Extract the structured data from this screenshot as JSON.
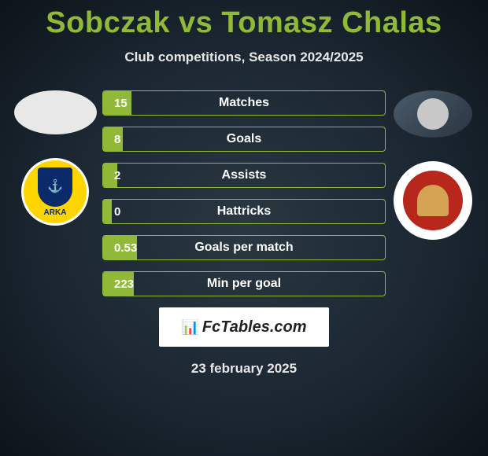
{
  "title": "Sobczak vs Tomasz Chalas",
  "subtitle": "Club competitions, Season 2024/2025",
  "colors": {
    "accent": "#8fb936",
    "bg_center": "#2a3842",
    "bg_edge": "#0d1419",
    "text_light": "#e8e8e8",
    "white": "#ffffff",
    "club_left_bg": "#ffd500",
    "club_left_shield": "#0a2a6a",
    "club_right_bg": "#b8271c",
    "club_right_emblem": "#d4a354"
  },
  "stats": [
    {
      "value": "15",
      "label": "Matches",
      "fill_pct": 10
    },
    {
      "value": "8",
      "label": "Goals",
      "fill_pct": 7
    },
    {
      "value": "2",
      "label": "Assists",
      "fill_pct": 5
    },
    {
      "value": "0",
      "label": "Hattricks",
      "fill_pct": 3
    },
    {
      "value": "0.53",
      "label": "Goals per match",
      "fill_pct": 12
    },
    {
      "value": "223",
      "label": "Min per goal",
      "fill_pct": 11
    }
  ],
  "brand": "FcTables.com",
  "date": "23 february 2025"
}
